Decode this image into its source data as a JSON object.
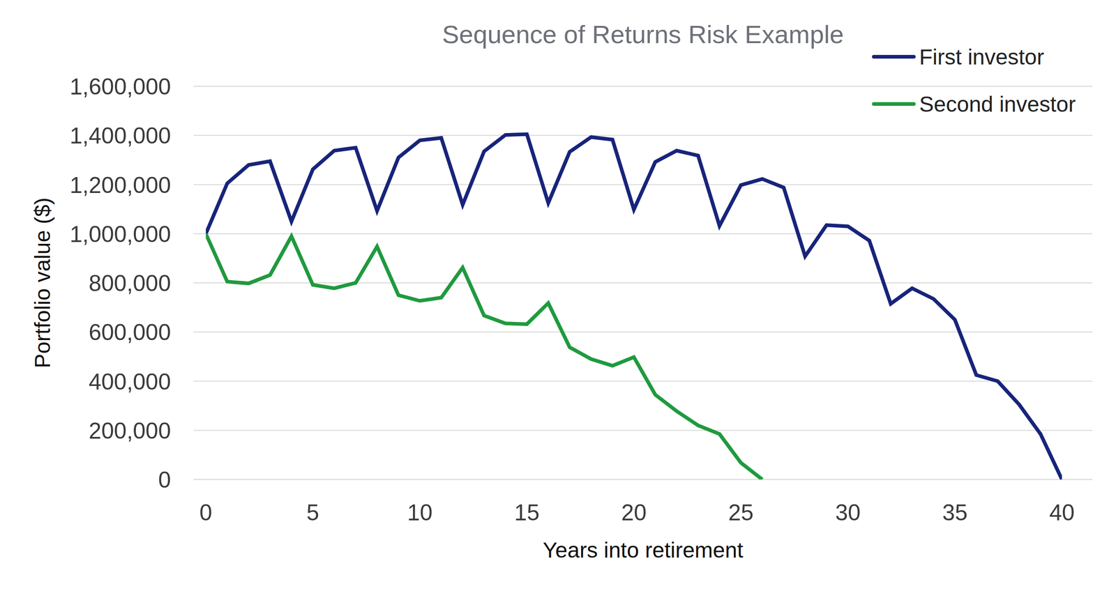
{
  "chart_data": {
    "type": "line",
    "title": "Sequence of Returns Risk Example",
    "x_label": "Years into retirement",
    "y_label": "Portfolio value ($)",
    "x": [
      0,
      1,
      2,
      3,
      4,
      5,
      6,
      7,
      8,
      9,
      10,
      11,
      12,
      13,
      14,
      15,
      16,
      17,
      18,
      19,
      20,
      21,
      22,
      23,
      24,
      25,
      26,
      27,
      28,
      29,
      30,
      31,
      32,
      33,
      34,
      35,
      36,
      37,
      38,
      39,
      40
    ],
    "series": [
      {
        "name": "First investor",
        "color": "#17247a",
        "values": [
          1000000,
          1205000,
          1280000,
          1295000,
          1050000,
          1262000,
          1338000,
          1350000,
          1093000,
          1310000,
          1380000,
          1390000,
          1118000,
          1335000,
          1402000,
          1405000,
          1125000,
          1333000,
          1393000,
          1383000,
          1098000,
          1292000,
          1338000,
          1318000,
          1032000,
          1198000,
          1223000,
          1188000,
          908000,
          1035000,
          1030000,
          972000,
          715000,
          778000,
          735000,
          650000,
          425000,
          400000,
          305000,
          185000,
          0
        ]
      },
      {
        "name": "Second investor",
        "color": "#1f9a3e",
        "values": [
          1000000,
          805000,
          798000,
          832000,
          990000,
          792000,
          778000,
          800000,
          948000,
          750000,
          727000,
          740000,
          862000,
          667000,
          635000,
          632000,
          718000,
          538000,
          490000,
          463000,
          498000,
          345000,
          278000,
          220000,
          185000,
          68000,
          0,
          null,
          null,
          null,
          null,
          null,
          null,
          null,
          null,
          null,
          null,
          null,
          null,
          null,
          null
        ]
      }
    ],
    "xlim": [
      0,
      40
    ],
    "xticks": [
      0,
      5,
      10,
      15,
      20,
      25,
      30,
      35,
      40
    ],
    "ylim": [
      0,
      1600000
    ],
    "yticks": [
      0,
      {
        "value": 200000,
        "label": "200,000"
      },
      {
        "value": 400000,
        "label": "400,000"
      },
      {
        "value": 600000,
        "label": "600,000"
      },
      {
        "value": 800000,
        "label": "800,000"
      },
      {
        "value": 1000000,
        "label": "1,000,000"
      },
      {
        "value": 1200000,
        "label": "1,200,000"
      },
      {
        "value": 1400000,
        "label": "1,400,000"
      },
      {
        "value": 1600000,
        "label": "1,600,000"
      }
    ],
    "grid": true,
    "legend": "top-right"
  }
}
